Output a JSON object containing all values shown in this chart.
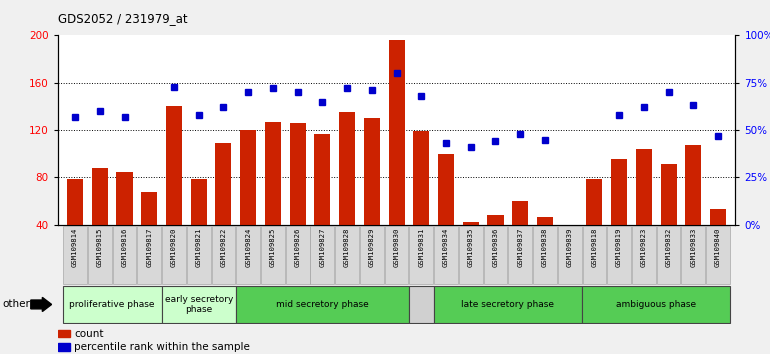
{
  "title": "GDS2052 / 231979_at",
  "samples": [
    "GSM109814",
    "GSM109815",
    "GSM109816",
    "GSM109817",
    "GSM109820",
    "GSM109821",
    "GSM109822",
    "GSM109824",
    "GSM109825",
    "GSM109826",
    "GSM109827",
    "GSM109828",
    "GSM109829",
    "GSM109830",
    "GSM109831",
    "GSM109834",
    "GSM109835",
    "GSM109836",
    "GSM109837",
    "GSM109838",
    "GSM109839",
    "GSM109818",
    "GSM109819",
    "GSM109823",
    "GSM109832",
    "GSM109833",
    "GSM109840"
  ],
  "bar_values": [
    79,
    88,
    85,
    68,
    140,
    79,
    109,
    120,
    127,
    126,
    117,
    135,
    130,
    196,
    119,
    100,
    42,
    48,
    60,
    47,
    40,
    79,
    96,
    104,
    91,
    107,
    53
  ],
  "dot_values_pct": [
    57,
    60,
    57,
    null,
    73,
    58,
    62,
    70,
    72,
    70,
    65,
    72,
    71,
    80,
    68,
    43,
    41,
    44,
    48,
    45,
    null,
    null,
    58,
    62,
    70,
    63,
    47
  ],
  "ylim_left": [
    40,
    200
  ],
  "ylim_right": [
    0,
    100
  ],
  "yticks_left": [
    40,
    80,
    120,
    160,
    200
  ],
  "yticks_right": [
    0,
    25,
    50,
    75,
    100
  ],
  "bar_color": "#cc2200",
  "dot_color": "#0000cc",
  "background_color": "#f0f0f0",
  "plot_bg_color": "#ffffff",
  "phase_regions": [
    {
      "label": "proliferative phase",
      "start": 0,
      "end": 3,
      "color": "#ccffcc"
    },
    {
      "label": "early secretory\nphase",
      "start": 4,
      "end": 6,
      "color": "#ccffcc"
    },
    {
      "label": "mid secretory phase",
      "start": 7,
      "end": 13,
      "color": "#55cc55"
    },
    {
      "label": "",
      "start": 14,
      "end": 14,
      "color": "#d0d0d0"
    },
    {
      "label": "late secretory phase",
      "start": 15,
      "end": 20,
      "color": "#55cc55"
    },
    {
      "label": "ambiguous phase",
      "start": 21,
      "end": 26,
      "color": "#55cc55"
    }
  ],
  "legend_items": [
    {
      "label": "count",
      "color": "#cc2200"
    },
    {
      "label": "percentile rank within the sample",
      "color": "#0000cc"
    }
  ],
  "other_label": "other"
}
